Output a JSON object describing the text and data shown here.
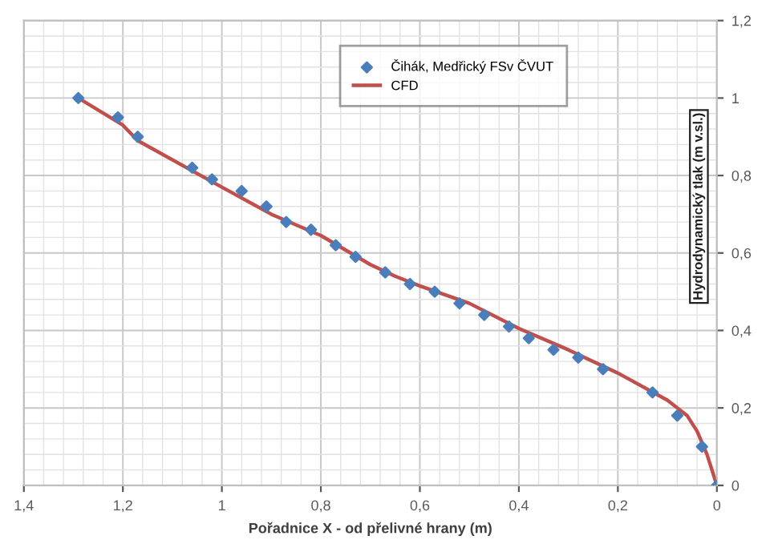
{
  "chart_data": {
    "type": "scatter",
    "xlabel": "Pořadnice X - od přelivné hrany (m)",
    "ylabel": "Hydrodynamický tlak (m v.sl.)",
    "xlim": [
      1.4,
      0
    ],
    "xticks": [
      {
        "value": 1.4,
        "label": "1,4"
      },
      {
        "value": 1.2,
        "label": "1,2"
      },
      1,
      {
        "value": 0.8,
        "label": "0,8"
      },
      {
        "value": 0.6,
        "label": "0,6"
      },
      {
        "value": 0.4,
        "label": "0,4"
      },
      {
        "value": 0.2,
        "label": "0,2"
      },
      0
    ],
    "ylim": [
      0,
      1.2
    ],
    "yticks": [
      0,
      {
        "value": 0.2,
        "label": "0,2"
      },
      {
        "value": 0.4,
        "label": "0,4"
      },
      {
        "value": 0.6,
        "label": "0,6"
      },
      {
        "value": 0.8,
        "label": "0,8"
      },
      1,
      {
        "value": 1.2,
        "label": "1,2"
      }
    ],
    "grid": true,
    "legend": "top",
    "series": [
      {
        "name": "Čihák, Medřický FSv ČVUT",
        "marker": "diamond",
        "color": "#4a7ebb",
        "x": [
          1.29,
          1.21,
          1.17,
          1.06,
          1.02,
          0.96,
          0.91,
          0.87,
          0.82,
          0.77,
          0.73,
          0.67,
          0.62,
          0.57,
          0.52,
          0.47,
          0.42,
          0.38,
          0.33,
          0.28,
          0.23,
          0.13,
          0.08,
          0.03,
          0
        ],
        "values": [
          1.0,
          0.95,
          0.9,
          0.82,
          0.79,
          0.76,
          0.72,
          0.68,
          0.66,
          0.62,
          0.59,
          0.55,
          0.52,
          0.5,
          0.47,
          0.44,
          0.41,
          0.38,
          0.35,
          0.33,
          0.3,
          0.24,
          0.18,
          0.1,
          0
        ]
      },
      {
        "name": "CFD",
        "type": "line",
        "marker": "none",
        "line_style": "solid",
        "color": "#c0504d",
        "x": [
          1.29,
          1.2,
          1.17,
          1.0,
          0.9,
          0.8,
          0.7,
          0.65,
          0.6,
          0.5,
          0.4,
          0.3,
          0.2,
          0.1,
          0.06,
          0.04,
          0.02,
          0
        ],
        "values": [
          1.0,
          0.93,
          0.89,
          0.77,
          0.7,
          0.645,
          0.57,
          0.54,
          0.515,
          0.47,
          0.405,
          0.35,
          0.29,
          0.22,
          0.18,
          0.14,
          0.08,
          0
        ]
      }
    ]
  }
}
